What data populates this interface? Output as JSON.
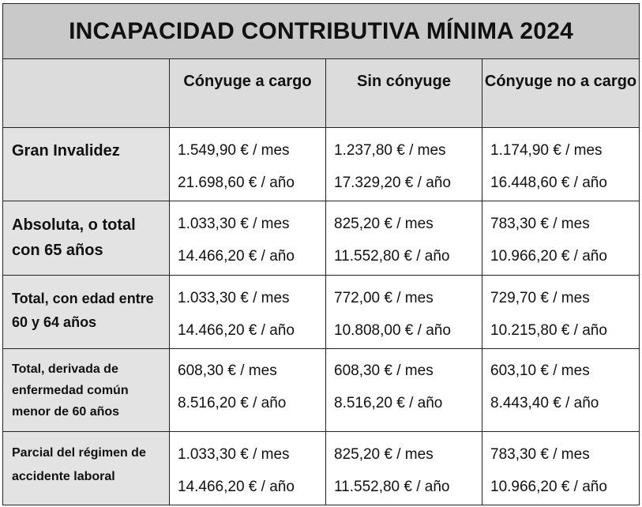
{
  "title": "INCAPACIDAD CONTRIBUTIVA MÍNIMA 2024",
  "columns": [
    "Cónyuge a cargo",
    "Sin cónyuge",
    "Cónyuge no a cargo"
  ],
  "rows": [
    {
      "label": "Gran Invalidez",
      "cells": [
        {
          "monthly": "1.549,90 € / mes",
          "yearly": "21.698,60 € / año"
        },
        {
          "monthly": "1.237,80 € / mes",
          "yearly": "17.329,20 € / año"
        },
        {
          "monthly": "1.174,90 € / mes",
          "yearly": "16.448,60 € / año"
        }
      ]
    },
    {
      "label": "Absoluta, o total con 65 años",
      "cells": [
        {
          "monthly": "1.033,30 € / mes",
          "yearly": "14.466,20 € / año"
        },
        {
          "monthly": "825,20 € / mes",
          "yearly": "11.552,80 € / año"
        },
        {
          "monthly": "783,30 € / mes",
          "yearly": "10.966,20 € / año"
        }
      ]
    },
    {
      "label": "Total, con edad entre 60 y 64 años",
      "cells": [
        {
          "monthly": "1.033,30 € / mes",
          "yearly": "14.466,20 € / año"
        },
        {
          "monthly": "772,00 € / mes",
          "yearly": "10.808,00 € / año"
        },
        {
          "monthly": "729,70 € / mes",
          "yearly": "10.215,80 € / año"
        }
      ]
    },
    {
      "label": "Total, derivada de enfermedad común menor de 60 años",
      "cells": [
        {
          "monthly": "608,30 € / mes",
          "yearly": "8.516,20 € / año"
        },
        {
          "monthly": "608,30 € / mes",
          "yearly": "8.516,20 € / año"
        },
        {
          "monthly": "603,10 € / mes",
          "yearly": "8.443,40 € / año"
        }
      ]
    },
    {
      "label": "Parcial del régimen de accidente laboral",
      "cells": [
        {
          "monthly": "1.033,30 € / mes",
          "yearly": "14.466,20 € / año"
        },
        {
          "monthly": "825,20 € / mes",
          "yearly": "11.552,80 € / año"
        },
        {
          "monthly": "783,30 € / mes",
          "yearly": "10.966,20 € / año"
        }
      ]
    }
  ]
}
